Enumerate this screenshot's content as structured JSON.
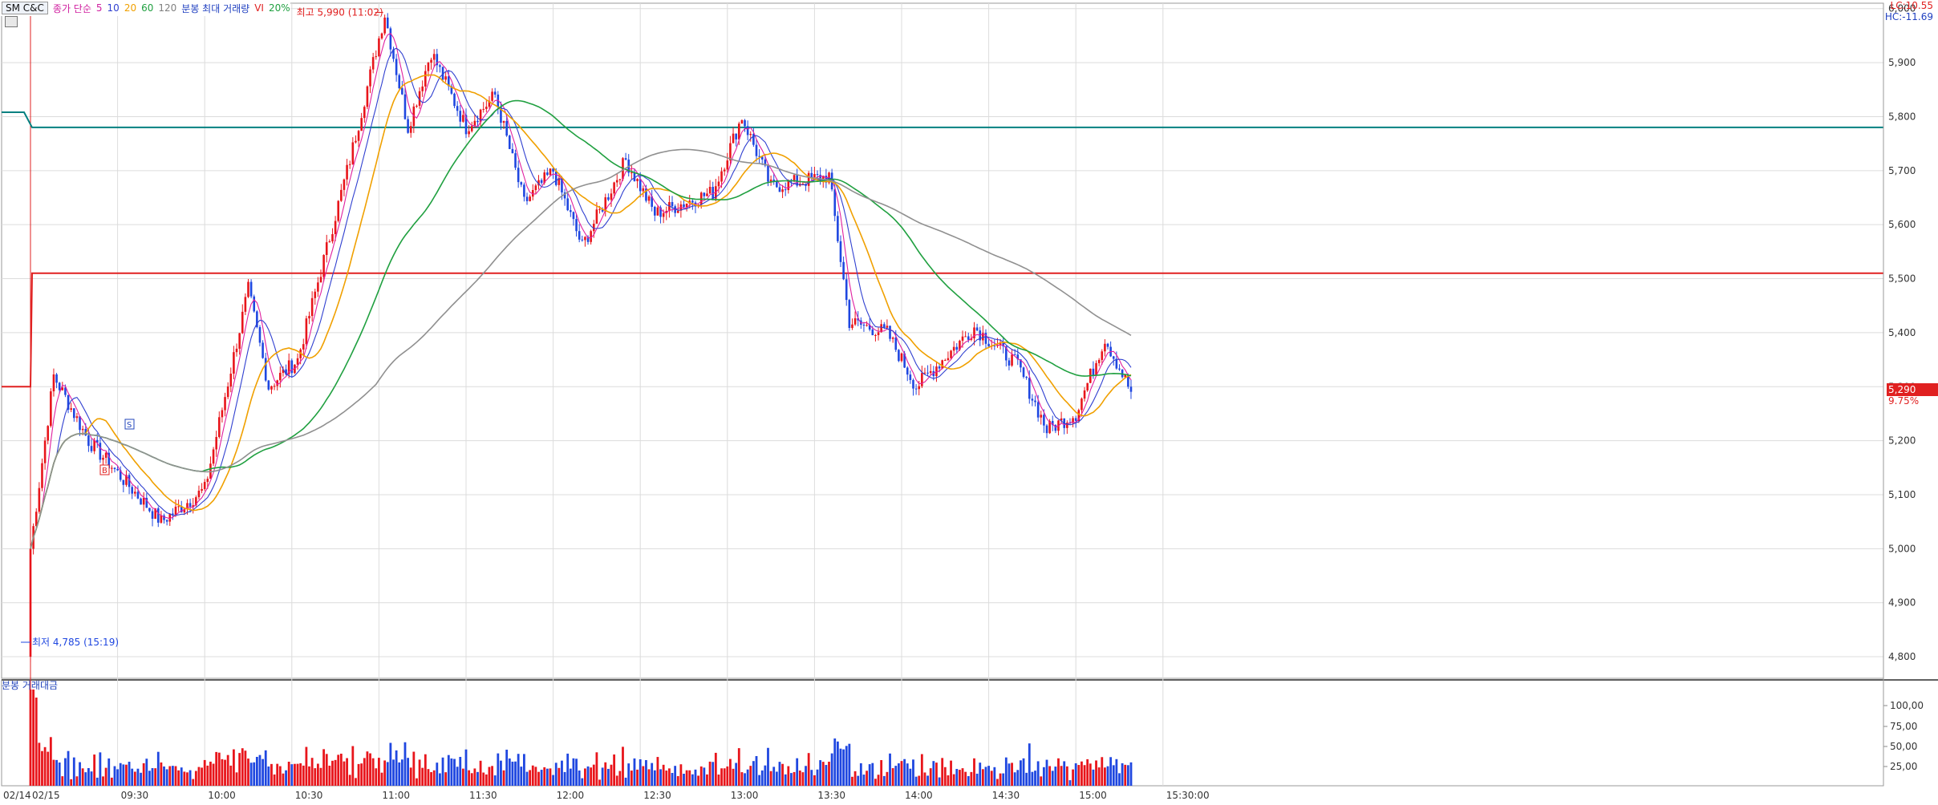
{
  "legend": {
    "title": "SM C&C",
    "ma_prefix": "종가 단순",
    "ma_periods": [
      "5",
      "10",
      "20",
      "60",
      "120"
    ],
    "vol_max": "분봉 최대 거래량",
    "vi": "VI",
    "vi_pct": "20%"
  },
  "colors": {
    "up": "#e8151b",
    "down": "#1f47e0",
    "ma5": "#e020a0",
    "ma10": "#3040d0",
    "ma20": "#f0a000",
    "ma60": "#20a040",
    "ma120": "#909090",
    "vi_upper": "#008080",
    "vi_lower": "#e02020",
    "prev_close_line": "#e02020"
  },
  "header_right": {
    "lc": "LC:10.55",
    "hc": "HC:-11.69"
  },
  "price_axis": {
    "ticks": [
      "6,000",
      "5,900",
      "5,800",
      "5,700",
      "5,600",
      "5,500",
      "5,400",
      "5,300",
      "5,200",
      "5,100",
      "5,000",
      "4,900",
      "4,800"
    ]
  },
  "current": {
    "price": "5,290",
    "change_pct": "9.75%"
  },
  "annotations": {
    "high": "최고 5,990 (11:02)",
    "low": "최저 4,785 (15:19)",
    "marker_s": "S",
    "marker_b": "B"
  },
  "volume_panel": {
    "title": "분봉 거래대금",
    "ticks": [
      "100,00",
      "75,00",
      "50,00",
      "25,00"
    ]
  },
  "time_axis": {
    "labels": [
      "02/14",
      "02/15",
      "09:30",
      "10:00",
      "10:30",
      "11:00",
      "11:30",
      "12:00",
      "12:30",
      "13:00",
      "13:30",
      "14:00",
      "14:30",
      "15:00",
      "15:30:00"
    ]
  },
  "chart_data": {
    "type": "candlestick",
    "interval": "1 minute",
    "y_range": [
      4760,
      6010
    ],
    "reference_lines": {
      "vi_upper": 5780,
      "vi_lower": 5510,
      "prev_close": 5300
    },
    "key_points": [
      {
        "time": "09:00",
        "close": 5000
      },
      {
        "time": "09:08",
        "close": 5320
      },
      {
        "time": "09:20",
        "close": 5200
      },
      {
        "time": "09:45",
        "close": 5050
      },
      {
        "time": "10:00",
        "close": 5110
      },
      {
        "time": "10:15",
        "close": 5480
      },
      {
        "time": "10:22",
        "close": 5300
      },
      {
        "time": "10:32",
        "close": 5350
      },
      {
        "time": "10:50",
        "close": 5720
      },
      {
        "time": "11:02",
        "close": 5990
      },
      {
        "time": "11:10",
        "close": 5780
      },
      {
        "time": "11:18",
        "close": 5920
      },
      {
        "time": "11:30",
        "close": 5780
      },
      {
        "time": "11:40",
        "close": 5840
      },
      {
        "time": "11:50",
        "close": 5640
      },
      {
        "time": "12:00",
        "close": 5700
      },
      {
        "time": "12:10",
        "close": 5560
      },
      {
        "time": "12:25",
        "close": 5720
      },
      {
        "time": "12:35",
        "close": 5620
      },
      {
        "time": "12:55",
        "close": 5660
      },
      {
        "time": "13:05",
        "close": 5800
      },
      {
        "time": "13:15",
        "close": 5670
      },
      {
        "time": "13:35",
        "close": 5690
      },
      {
        "time": "13:42",
        "close": 5420
      },
      {
        "time": "13:55",
        "close": 5400
      },
      {
        "time": "14:05",
        "close": 5300
      },
      {
        "time": "14:25",
        "close": 5410
      },
      {
        "time": "14:40",
        "close": 5340
      },
      {
        "time": "14:50",
        "close": 5220
      },
      {
        "time": "15:00",
        "close": 5250
      },
      {
        "time": "15:10",
        "close": 5390
      },
      {
        "time": "15:19",
        "close": 5290
      }
    ]
  }
}
